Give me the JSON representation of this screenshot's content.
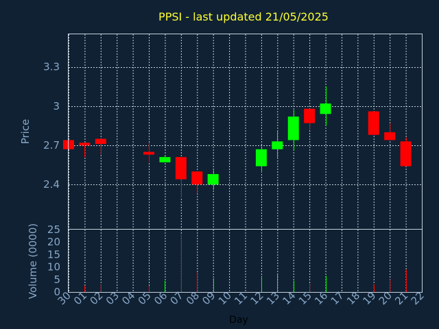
{
  "chart_data": {
    "type": "candlestick",
    "title": "PPSI - last updated 21/05/2025",
    "price_axis": {
      "label": "Price",
      "ticks": [
        "2.4",
        "2.7",
        "3",
        "3.3"
      ],
      "tick_values": [
        2.4,
        2.7,
        3.0,
        3.3
      ],
      "range": [
        2.06,
        3.55
      ]
    },
    "volume_axis": {
      "label": "Volume (0000)",
      "ticks": [
        "0",
        "5",
        "10",
        "15",
        "20",
        "25"
      ],
      "tick_values": [
        0,
        5,
        10,
        15,
        20,
        25
      ],
      "range": [
        0,
        25
      ]
    },
    "xlabel": "Day",
    "x_ticks": [
      "30",
      "01",
      "02",
      "03",
      "04",
      "05",
      "06",
      "07",
      "08",
      "09",
      "10",
      "11",
      "12",
      "13",
      "14",
      "15",
      "16",
      "17",
      "18",
      "19",
      "20",
      "21",
      "22"
    ],
    "grid": true,
    "colors": {
      "up": "#00ff00",
      "down": "#ff0000",
      "background": "#0f2133",
      "title": "#ffff33",
      "axis_text": "#8aa8c8",
      "grid": "#c8d2dc"
    },
    "candles": [
      {
        "day": "30",
        "open": 2.74,
        "close": 2.67,
        "high": 2.74,
        "low": 2.67,
        "volume": 0
      },
      {
        "day": "01",
        "open": 2.72,
        "close": 2.7,
        "high": 2.72,
        "low": 2.61,
        "volume": 2.5
      },
      {
        "day": "02",
        "open": 2.75,
        "close": 2.71,
        "high": 2.75,
        "low": 2.63,
        "volume": 3.0
      },
      {
        "day": "05",
        "open": 2.65,
        "close": 2.63,
        "high": 2.72,
        "low": 2.57,
        "volume": 2.5
      },
      {
        "day": "06",
        "open": 2.57,
        "close": 2.61,
        "high": 2.62,
        "low": 2.57,
        "volume": 4.5
      },
      {
        "day": "07",
        "open": 2.61,
        "close": 2.44,
        "high": 2.61,
        "low": 2.3,
        "volume": 23
      },
      {
        "day": "08",
        "open": 2.5,
        "close": 2.4,
        "high": 2.5,
        "low": 2.33,
        "volume": 8
      },
      {
        "day": "09",
        "open": 2.4,
        "close": 2.48,
        "high": 2.51,
        "low": 2.36,
        "volume": 5.5
      },
      {
        "day": "12",
        "open": 2.54,
        "close": 2.67,
        "high": 2.68,
        "low": 2.49,
        "volume": 6.5
      },
      {
        "day": "13",
        "open": 2.67,
        "close": 2.73,
        "high": 2.81,
        "low": 2.6,
        "volume": 7
      },
      {
        "day": "14",
        "open": 2.74,
        "close": 2.92,
        "high": 2.97,
        "low": 2.66,
        "volume": 4.5
      },
      {
        "day": "15",
        "open": 2.98,
        "close": 2.87,
        "high": 2.98,
        "low": 2.82,
        "volume": 3.5
      },
      {
        "day": "16",
        "open": 2.94,
        "close": 3.02,
        "high": 3.15,
        "low": 2.85,
        "volume": 6.5
      },
      {
        "day": "19",
        "open": 2.96,
        "close": 2.78,
        "high": 2.96,
        "low": 2.78,
        "volume": 3.0
      },
      {
        "day": "20",
        "open": 2.8,
        "close": 2.74,
        "high": 2.87,
        "low": 2.74,
        "volume": 5.0
      },
      {
        "day": "21",
        "open": 2.73,
        "close": 2.54,
        "high": 2.76,
        "low": 2.54,
        "volume": 9.0
      }
    ]
  }
}
